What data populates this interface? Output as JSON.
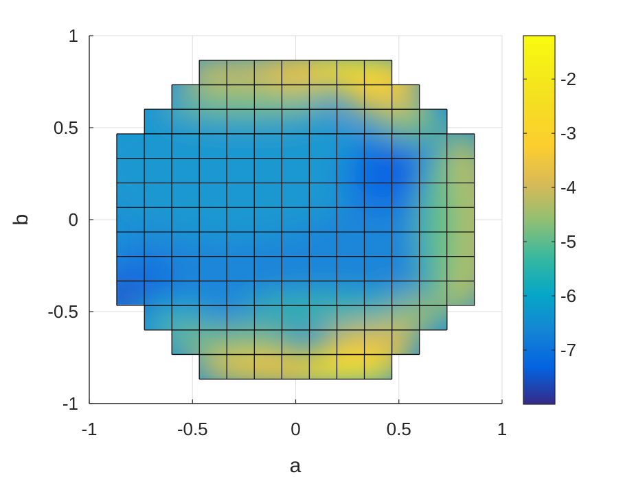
{
  "chart_data": {
    "type": "heatmap",
    "title": "",
    "xlabel": "a",
    "ylabel": "b",
    "xlim": [
      -1,
      1
    ],
    "ylim": [
      -1,
      1
    ],
    "xticks": [
      "-1",
      "-0.5",
      "0",
      "0.5",
      "1"
    ],
    "yticks": [
      "-1",
      "-0.5",
      "0",
      "0.5",
      "1"
    ],
    "grid": true,
    "colormap": "parula",
    "clim": [
      -8,
      -1.2
    ],
    "colorbar_ticks": [
      "-2",
      "-3",
      "-4",
      "-5",
      "-6",
      "-7"
    ],
    "grid_cell_size": 0.1333,
    "row_extents": [
      {
        "b": [
          0.733,
          0.867
        ],
        "a": [
          -0.467,
          0.467
        ]
      },
      {
        "b": [
          0.6,
          0.733
        ],
        "a": [
          -0.6,
          0.6
        ]
      },
      {
        "b": [
          0.467,
          0.6
        ],
        "a": [
          -0.733,
          0.733
        ]
      },
      {
        "b": [
          -0.467,
          0.467
        ],
        "a": [
          -0.867,
          0.867
        ]
      },
      {
        "b": [
          -0.6,
          -0.467
        ],
        "a": [
          -0.733,
          0.733
        ]
      },
      {
        "b": [
          -0.733,
          -0.6
        ],
        "a": [
          -0.6,
          0.6
        ]
      },
      {
        "b": [
          -0.867,
          -0.733
        ],
        "a": [
          -0.467,
          0.467
        ]
      }
    ]
  }
}
